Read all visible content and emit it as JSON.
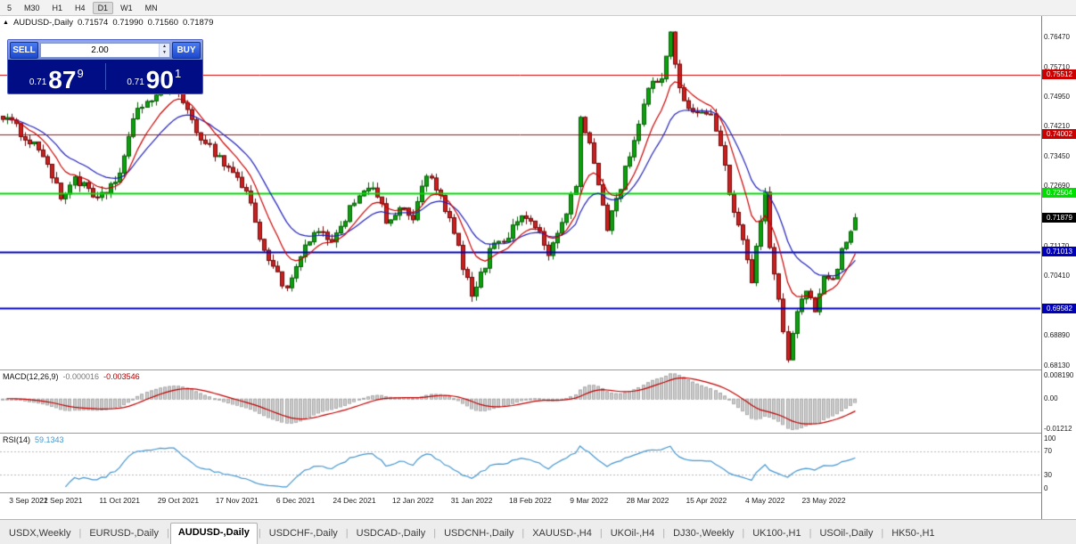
{
  "toolbar": {
    "timeframes": [
      {
        "label": "5"
      },
      {
        "label": "M30"
      },
      {
        "label": "H1"
      },
      {
        "label": "H4"
      },
      {
        "label": "D1",
        "active": true
      },
      {
        "label": "W1"
      },
      {
        "label": "MN"
      }
    ]
  },
  "icons": {
    "collapse": "▲",
    "spin_up": "▲",
    "spin_down": "▼"
  },
  "chart": {
    "title_symbol": "AUDUSD-,Daily",
    "ohlc": {
      "open": "0.71574",
      "high": "0.71990",
      "low": "0.71560",
      "close": "0.71879"
    }
  },
  "trade_panel": {
    "sell_label": "SELL",
    "buy_label": "BUY",
    "volume": "2.00",
    "sell_price": {
      "prefix": "0.71",
      "big": "87",
      "sup": "9"
    },
    "buy_price": {
      "prefix": "0.71",
      "big": "90",
      "sup": "1"
    }
  },
  "indicators": {
    "macd": {
      "name": "MACD(12,26,9)",
      "main_value": "-0.000016",
      "signal_value": "-0.003546",
      "axis_labels": [
        "0.008190",
        "0.00",
        "-0.01212"
      ]
    },
    "rsi": {
      "name": "RSI(14)",
      "value": "59.1343",
      "axis_labels": [
        "100",
        "70",
        "30",
        "0"
      ],
      "levels": [
        70,
        30
      ]
    }
  },
  "price_axis": {
    "grid_labels": [
      "0.76470",
      "0.75710",
      "0.74950",
      "0.74210",
      "0.73450",
      "0.72690",
      "0.71170",
      "0.70410",
      "0.68890",
      "0.68130"
    ]
  },
  "date_axis": {
    "labels": [
      "3 Sep 2021",
      "22 Sep 2021",
      "11 Oct 2021",
      "29 Oct 2021",
      "17 Nov 2021",
      "6 Dec 2021",
      "24 Dec 2021",
      "12 Jan 2022",
      "31 Jan 2022",
      "18 Feb 2022",
      "9 Mar 2022",
      "28 Mar 2022",
      "15 Apr 2022",
      "4 May 2022",
      "23 May 2022"
    ],
    "bars_per_grid": 13
  },
  "tabs": {
    "items": [
      {
        "label": "USDX,Weekly"
      },
      {
        "label": "EURUSD-,Daily"
      },
      {
        "label": "AUDUSD-,Daily",
        "active": true
      },
      {
        "label": "USDCHF-,Daily"
      },
      {
        "label": "USDCAD-,Daily"
      },
      {
        "label": "USDCNH-,Daily"
      },
      {
        "label": "XAUUSD-,H4"
      },
      {
        "label": "UKOil-,H4"
      },
      {
        "label": "DJ30-,Weekly"
      },
      {
        "label": "UK100-,H1"
      },
      {
        "label": "USOil-,Daily"
      },
      {
        "label": "HK50-,H1"
      }
    ]
  },
  "chart_data": {
    "type": "candlestick",
    "symbol": "AUDUSD-",
    "timeframe": "Daily",
    "bars_total": 190,
    "last_bar": {
      "open": 0.71574,
      "high": 0.7199,
      "low": 0.7156,
      "close": 0.71879
    },
    "y_axis": {
      "min": 0.6803,
      "max": 0.77
    },
    "ma_fast_period": 9,
    "ma_slow_period": 18,
    "macd_params": [
      12,
      26,
      9
    ],
    "rsi_period": 14,
    "price_anchors": [
      [
        0,
        0.7448
      ],
      [
        4,
        0.7405
      ],
      [
        9,
        0.7352
      ],
      [
        13,
        0.7235
      ],
      [
        16,
        0.7292
      ],
      [
        21,
        0.7228
      ],
      [
        26,
        0.73
      ],
      [
        30,
        0.747
      ],
      [
        34,
        0.7495
      ],
      [
        38,
        0.7535
      ],
      [
        40,
        0.747
      ],
      [
        44,
        0.7395
      ],
      [
        48,
        0.734
      ],
      [
        52,
        0.729
      ],
      [
        55,
        0.723
      ],
      [
        57,
        0.7125
      ],
      [
        60,
        0.707
      ],
      [
        63,
        0.7
      ],
      [
        66,
        0.709
      ],
      [
        70,
        0.716
      ],
      [
        73,
        0.7115
      ],
      [
        77,
        0.7215
      ],
      [
        80,
        0.7265
      ],
      [
        83,
        0.7245
      ],
      [
        85,
        0.718
      ],
      [
        88,
        0.721
      ],
      [
        91,
        0.7185
      ],
      [
        94,
        0.73
      ],
      [
        96,
        0.726
      ],
      [
        99,
        0.718
      ],
      [
        101,
        0.711
      ],
      [
        104,
        0.6985
      ],
      [
        106,
        0.704
      ],
      [
        109,
        0.713
      ],
      [
        112,
        0.714
      ],
      [
        114,
        0.7185
      ],
      [
        117,
        0.719
      ],
      [
        121,
        0.7095
      ],
      [
        124,
        0.7175
      ],
      [
        127,
        0.727
      ],
      [
        128,
        0.744
      ],
      [
        131,
        0.733
      ],
      [
        134,
        0.7165
      ],
      [
        137,
        0.727
      ],
      [
        140,
        0.739
      ],
      [
        143,
        0.751
      ],
      [
        146,
        0.755
      ],
      [
        148,
        0.7655
      ],
      [
        149,
        0.758
      ],
      [
        151,
        0.748
      ],
      [
        154,
        0.7455
      ],
      [
        157,
        0.7445
      ],
      [
        159,
        0.738
      ],
      [
        161,
        0.724
      ],
      [
        163,
        0.718
      ],
      [
        165,
        0.709
      ],
      [
        166,
        0.7035
      ],
      [
        168,
        0.718
      ],
      [
        169,
        0.725
      ],
      [
        170,
        0.711
      ],
      [
        172,
        0.6975
      ],
      [
        174,
        0.6835
      ],
      [
        176,
        0.6945
      ],
      [
        178,
        0.7
      ],
      [
        180,
        0.6955
      ],
      [
        182,
        0.7045
      ],
      [
        184,
        0.7035
      ],
      [
        186,
        0.71
      ],
      [
        188,
        0.7157
      ],
      [
        189,
        0.71879
      ]
    ],
    "colors": {
      "bull": "#0da10d",
      "bull_edge": "#075c07",
      "bear": "#cc2020",
      "bear_edge": "#6b0a0a",
      "ma_fast": "#cc0000",
      "ma_slow": "#2020bb",
      "macd_hist": "#cdcdcd",
      "macd_hist_edge": "#a9a9a9",
      "macd_signal": "#c00000",
      "rsi_line": "#4596cf",
      "rsi_level": "#b8b8b8"
    },
    "levels": [
      {
        "price": 0.75512,
        "label": "0.75512",
        "color": "#cc0000",
        "width": 1
      },
      {
        "price": 0.74002,
        "label": "0.74002",
        "color": "#cc0000",
        "width": 1
      },
      {
        "price": 0.72504,
        "label": "0.72504",
        "color": "#00dd00",
        "width": 2
      },
      {
        "price": 0.71013,
        "label": "0.71013",
        "color": "#0000bb",
        "width": 2
      },
      {
        "price": 0.69582,
        "label": "0.69582",
        "color": "#0000bb",
        "width": 2
      }
    ],
    "current_price": {
      "price": 0.71879,
      "label": "0.71879",
      "color": "#000000"
    }
  }
}
